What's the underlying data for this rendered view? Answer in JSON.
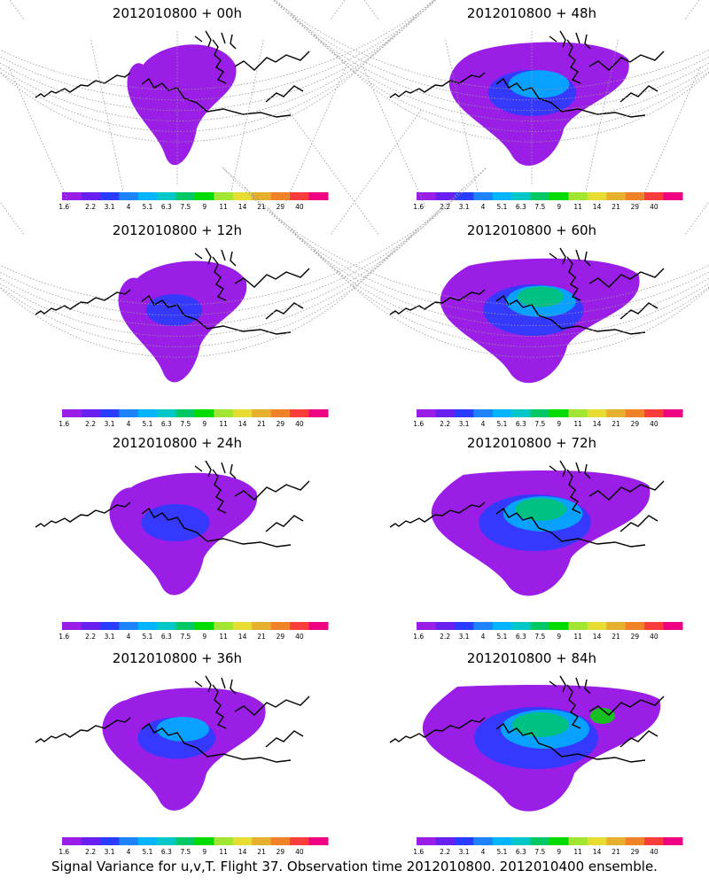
{
  "panels": [
    {
      "title": "2012010800 + 00h",
      "spread": 0.0
    },
    {
      "title": "2012010800 + 48h",
      "spread": 0.55
    },
    {
      "title": "2012010800 + 12h",
      "spread": 0.15
    },
    {
      "title": "2012010800 + 60h",
      "spread": 0.7
    },
    {
      "title": "2012010800 + 24h",
      "spread": 0.3
    },
    {
      "title": "2012010800 + 72h",
      "spread": 0.85
    },
    {
      "title": "2012010800 + 36h",
      "spread": 0.42
    },
    {
      "title": "2012010800 + 84h",
      "spread": 1.0
    }
  ],
  "colorbar": {
    "labels": [
      "1.6",
      "2.2",
      "3.1",
      "4",
      "5.1",
      "6.3",
      "7.5",
      "9",
      "11",
      "14",
      "21",
      "29",
      "40"
    ],
    "colors": [
      "#9a1ee6",
      "#6a1ef0",
      "#2a3cff",
      "#1e82ff",
      "#00b4ff",
      "#00c8c8",
      "#00c864",
      "#00dc00",
      "#a0e632",
      "#e6dc32",
      "#e6af2d",
      "#f08228",
      "#fa3c3c",
      "#f00082"
    ]
  },
  "footer": "Signal Variance for u,v,T. Flight 37. Observation time 2012010800. 2012010400 ensemble."
}
